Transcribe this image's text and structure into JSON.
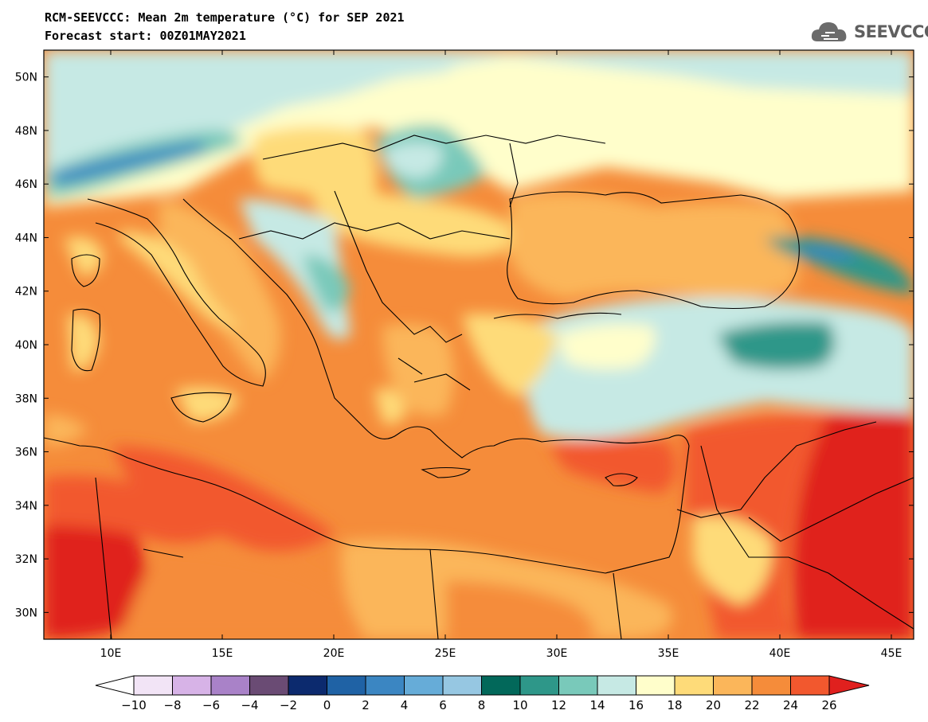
{
  "header": {
    "title": "RCM-SEEVCCC: Mean 2m temperature (°C) for SEP 2021",
    "subtitle": "Forecast start: 00Z01MAY2021",
    "logo_text": "SEEVCCC"
  },
  "map": {
    "region": "South-eastern Europe and Eastern Mediterranean",
    "lon_range": [
      7,
      46
    ],
    "lat_range": [
      29,
      51
    ],
    "lat_ticks": [
      "50N",
      "48N",
      "46N",
      "44N",
      "42N",
      "40N",
      "38N",
      "36N",
      "34N",
      "32N",
      "30N"
    ],
    "lon_ticks": [
      "10E",
      "15E",
      "20E",
      "25E",
      "30E",
      "35E",
      "40E",
      "45E"
    ]
  },
  "colorbar": {
    "labels": [
      "-10",
      "-8",
      "-6",
      "-4",
      "-2",
      "0",
      "2",
      "4",
      "6",
      "8",
      "10",
      "12",
      "14",
      "16",
      "18",
      "20",
      "22",
      "24",
      "26"
    ],
    "colors": [
      "#f2e4f6",
      "#d7b3e7",
      "#a982c8",
      "#6a4b74",
      "#0c2a6e",
      "#1f62a5",
      "#3b86c2",
      "#66acd8",
      "#96c7e2",
      "#02685a",
      "#2e9789",
      "#79c9ba",
      "#c6e9e4",
      "#fffecb",
      "#fedb79",
      "#fbb65a",
      "#f58c3a",
      "#f2582e"
    ],
    "under_color": "#ffffff",
    "over_color": "#e0201e"
  }
}
